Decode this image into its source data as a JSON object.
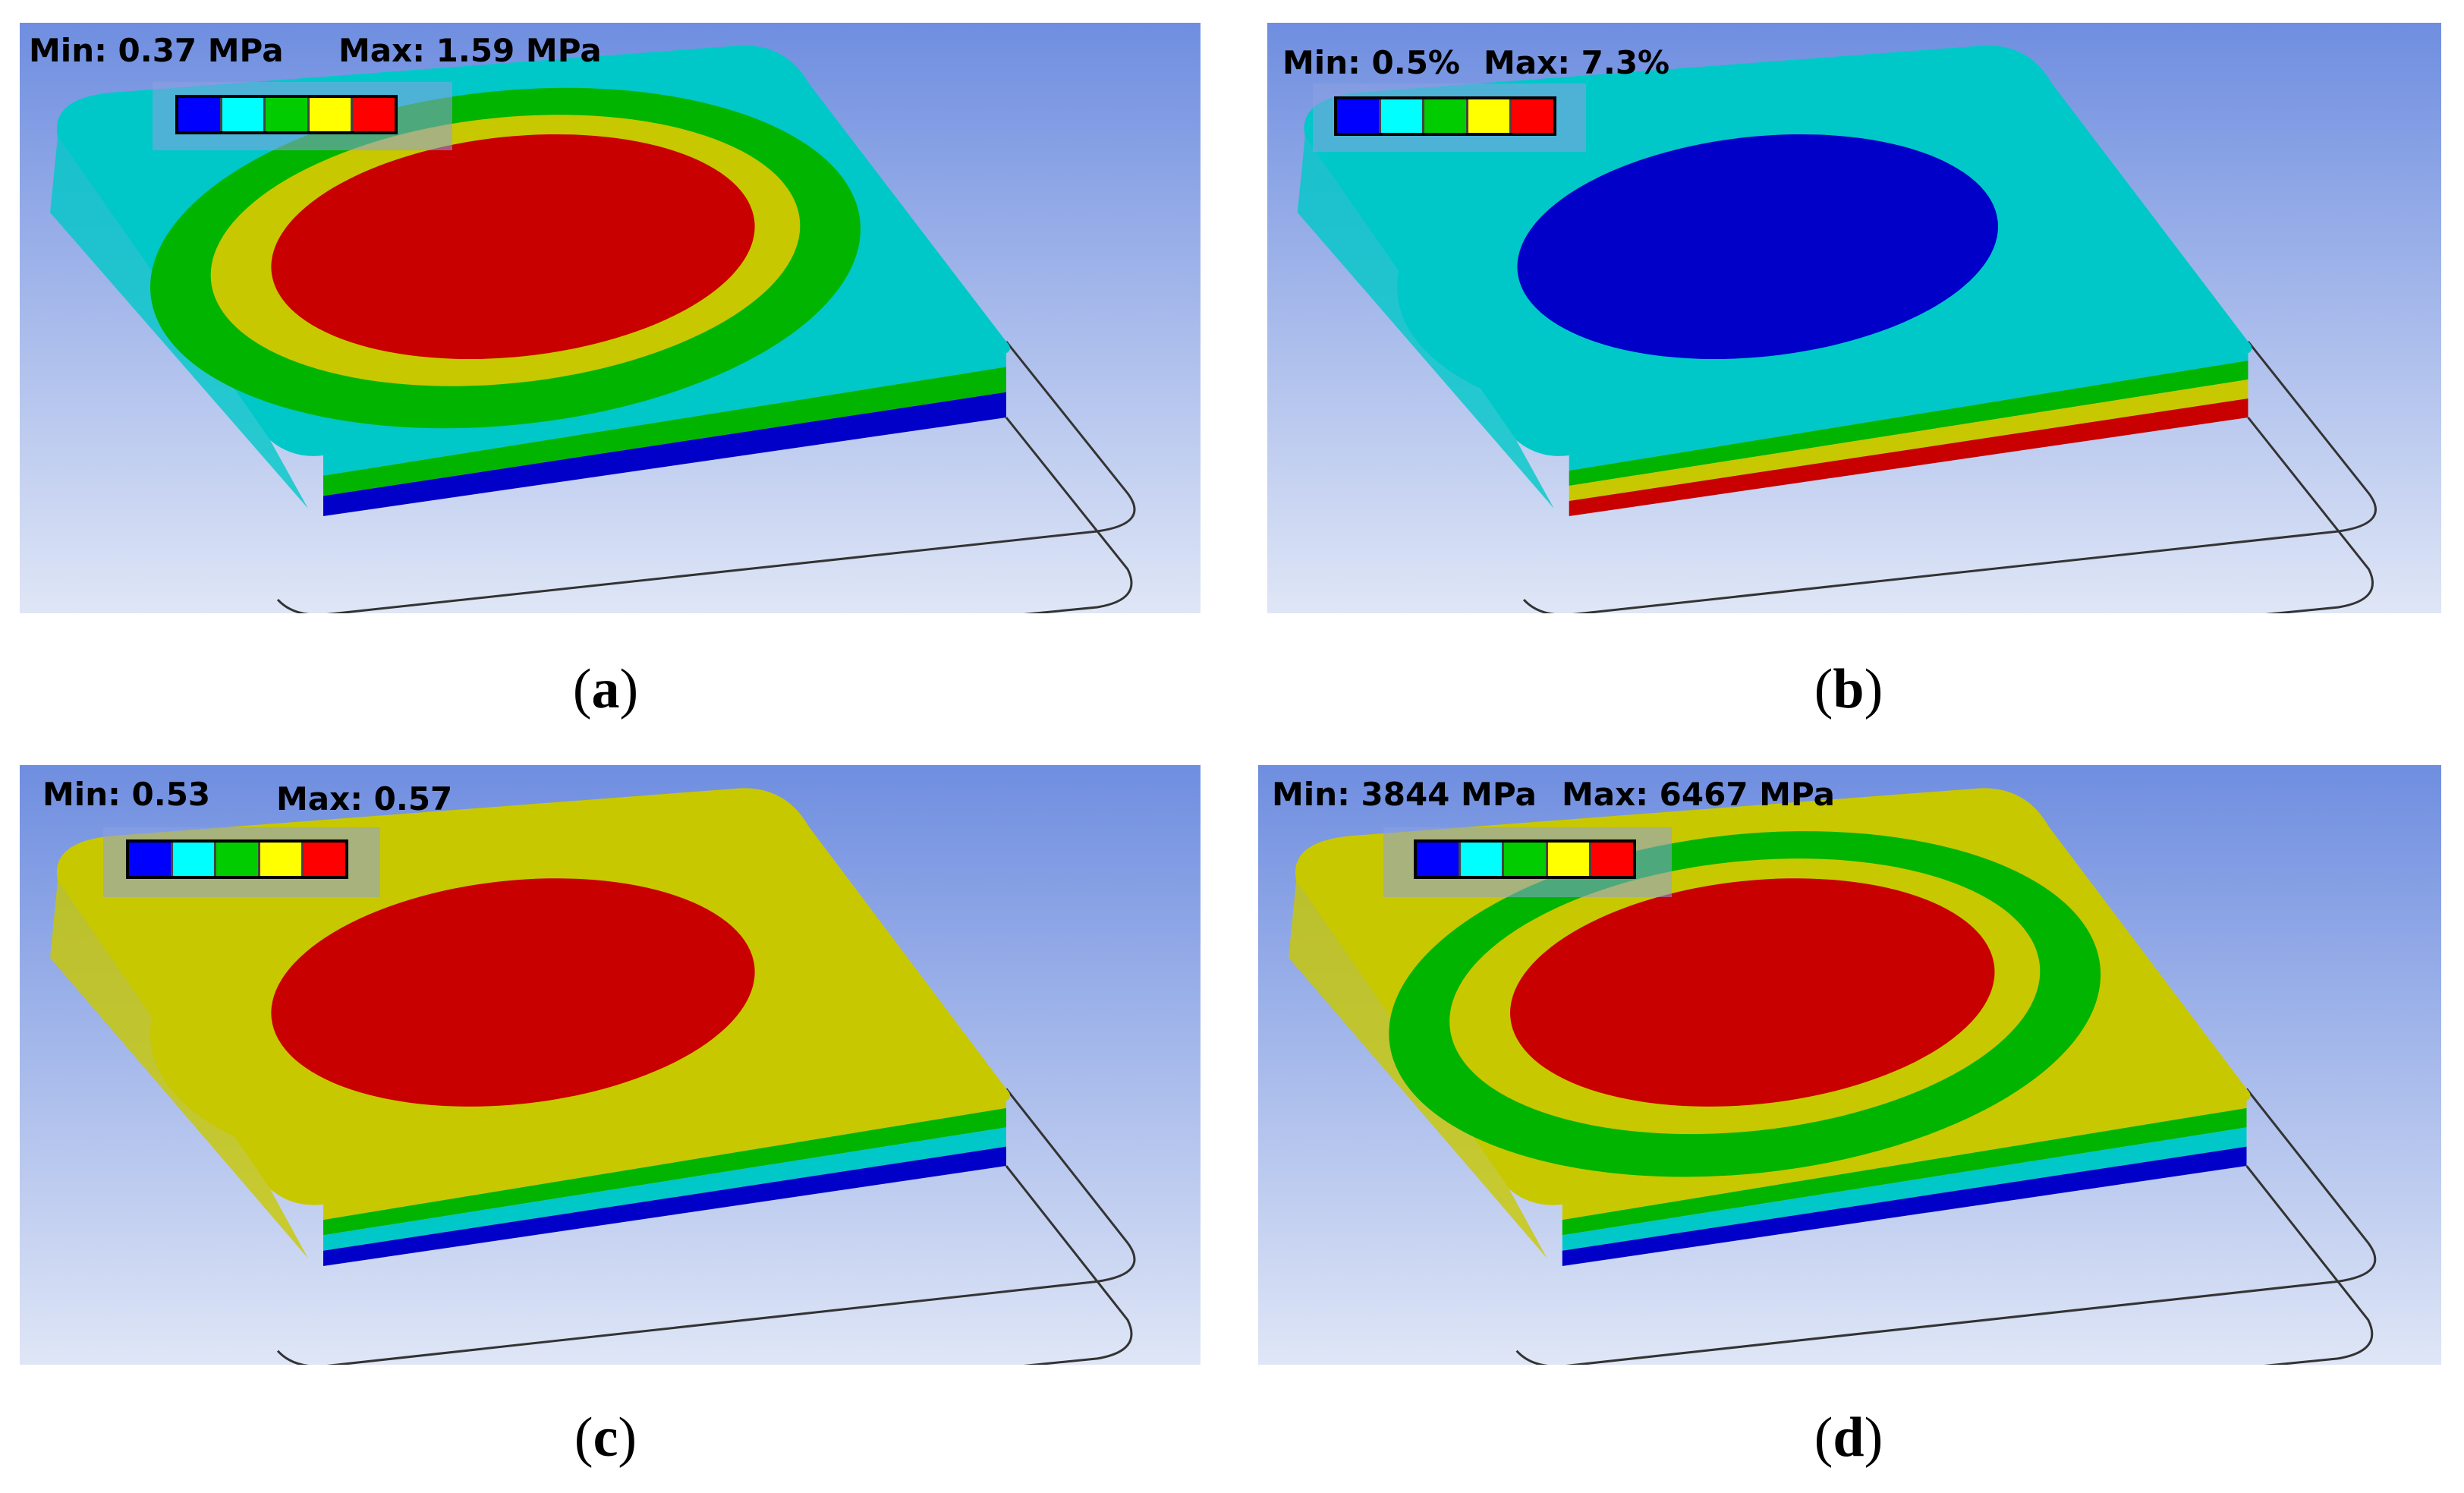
{
  "colors": {
    "bg_top": "#6f8ee0",
    "bg_bottom": "#dfe6f6",
    "blue": "#0000c8",
    "cyan": "#00c8c8",
    "green": "#00b400",
    "yellow": "#c8c800",
    "red": "#c80000",
    "outline": "#333333"
  },
  "legend_colors": [
    "#0000ff",
    "#00ffff",
    "#00cc00",
    "#ffff00",
    "#ff0000"
  ],
  "panels": [
    {
      "id": "a",
      "min_label": "Min: 0.37 MPa",
      "max_label": "Max: 1.59 MPa",
      "caption": "a",
      "top": "cyan",
      "center": "red",
      "ring": "yellow",
      "mid": "green",
      "side": [
        "cyan",
        "green",
        "blue"
      ]
    },
    {
      "id": "b",
      "min_label": "Min: 0.5%",
      "max_label": "Max: 7.3%",
      "caption": "b",
      "top": "cyan",
      "center": "blue",
      "ring": "cyan",
      "mid": "cyan",
      "side": [
        "cyan",
        "green",
        "yellow",
        "red"
      ]
    },
    {
      "id": "c",
      "min_label": "Min: 0.53",
      "max_label": "Max: 0.57",
      "caption": "c",
      "top": "yellow",
      "center": "red",
      "ring": "yellow",
      "mid": "yellow",
      "side": [
        "yellow",
        "green",
        "cyan",
        "blue"
      ]
    },
    {
      "id": "d",
      "min_label": "Min: 3844 MPa",
      "max_label": "Max: 6467 MPa",
      "caption": "d",
      "top": "yellow",
      "center": "red",
      "ring": "yellow",
      "mid": "green",
      "side": [
        "yellow",
        "green",
        "cyan",
        "blue"
      ]
    }
  ]
}
